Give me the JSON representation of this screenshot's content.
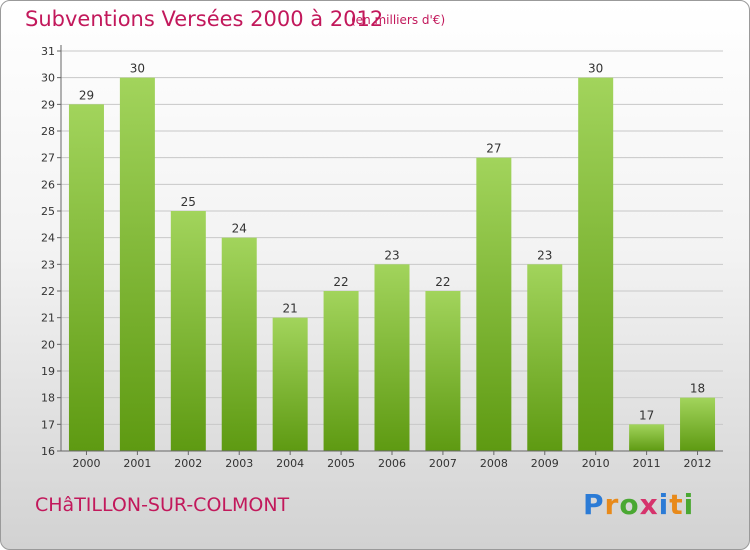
{
  "header": {
    "title": "Subventions Versées 2000 à 2012",
    "subtitle": "(en milliers d'€)"
  },
  "commune": "CHâTILLON-SUR-COLMONT",
  "logo": {
    "letters": [
      "P",
      "r",
      "o",
      "x",
      "i",
      "t",
      "i"
    ],
    "colors": [
      "#2b7bd6",
      "#e88a1a",
      "#4aa832",
      "#d6336c",
      "#2b7bd6",
      "#e88a1a",
      "#4aa832"
    ]
  },
  "colors": {
    "bar_light": "#a2d45c",
    "bar_dark": "#5e9a12",
    "grid": "#c8c8c8",
    "axis": "#666666",
    "title": "#c2185b"
  },
  "chart_data": {
    "type": "bar",
    "categories": [
      "2000",
      "2001",
      "2002",
      "2003",
      "2004",
      "2005",
      "2006",
      "2007",
      "2008",
      "2009",
      "2010",
      "2011",
      "2012"
    ],
    "values": [
      29,
      30,
      25,
      24,
      21,
      22,
      23,
      22,
      27,
      23,
      30,
      17,
      18
    ],
    "ylim": [
      16,
      31
    ],
    "yticks": [
      16,
      17,
      18,
      19,
      20,
      21,
      22,
      23,
      24,
      25,
      26,
      27,
      28,
      29,
      30,
      31
    ],
    "grid": true,
    "title": "Subventions Versées 2000 à 2012",
    "xlabel": "",
    "ylabel": ""
  }
}
